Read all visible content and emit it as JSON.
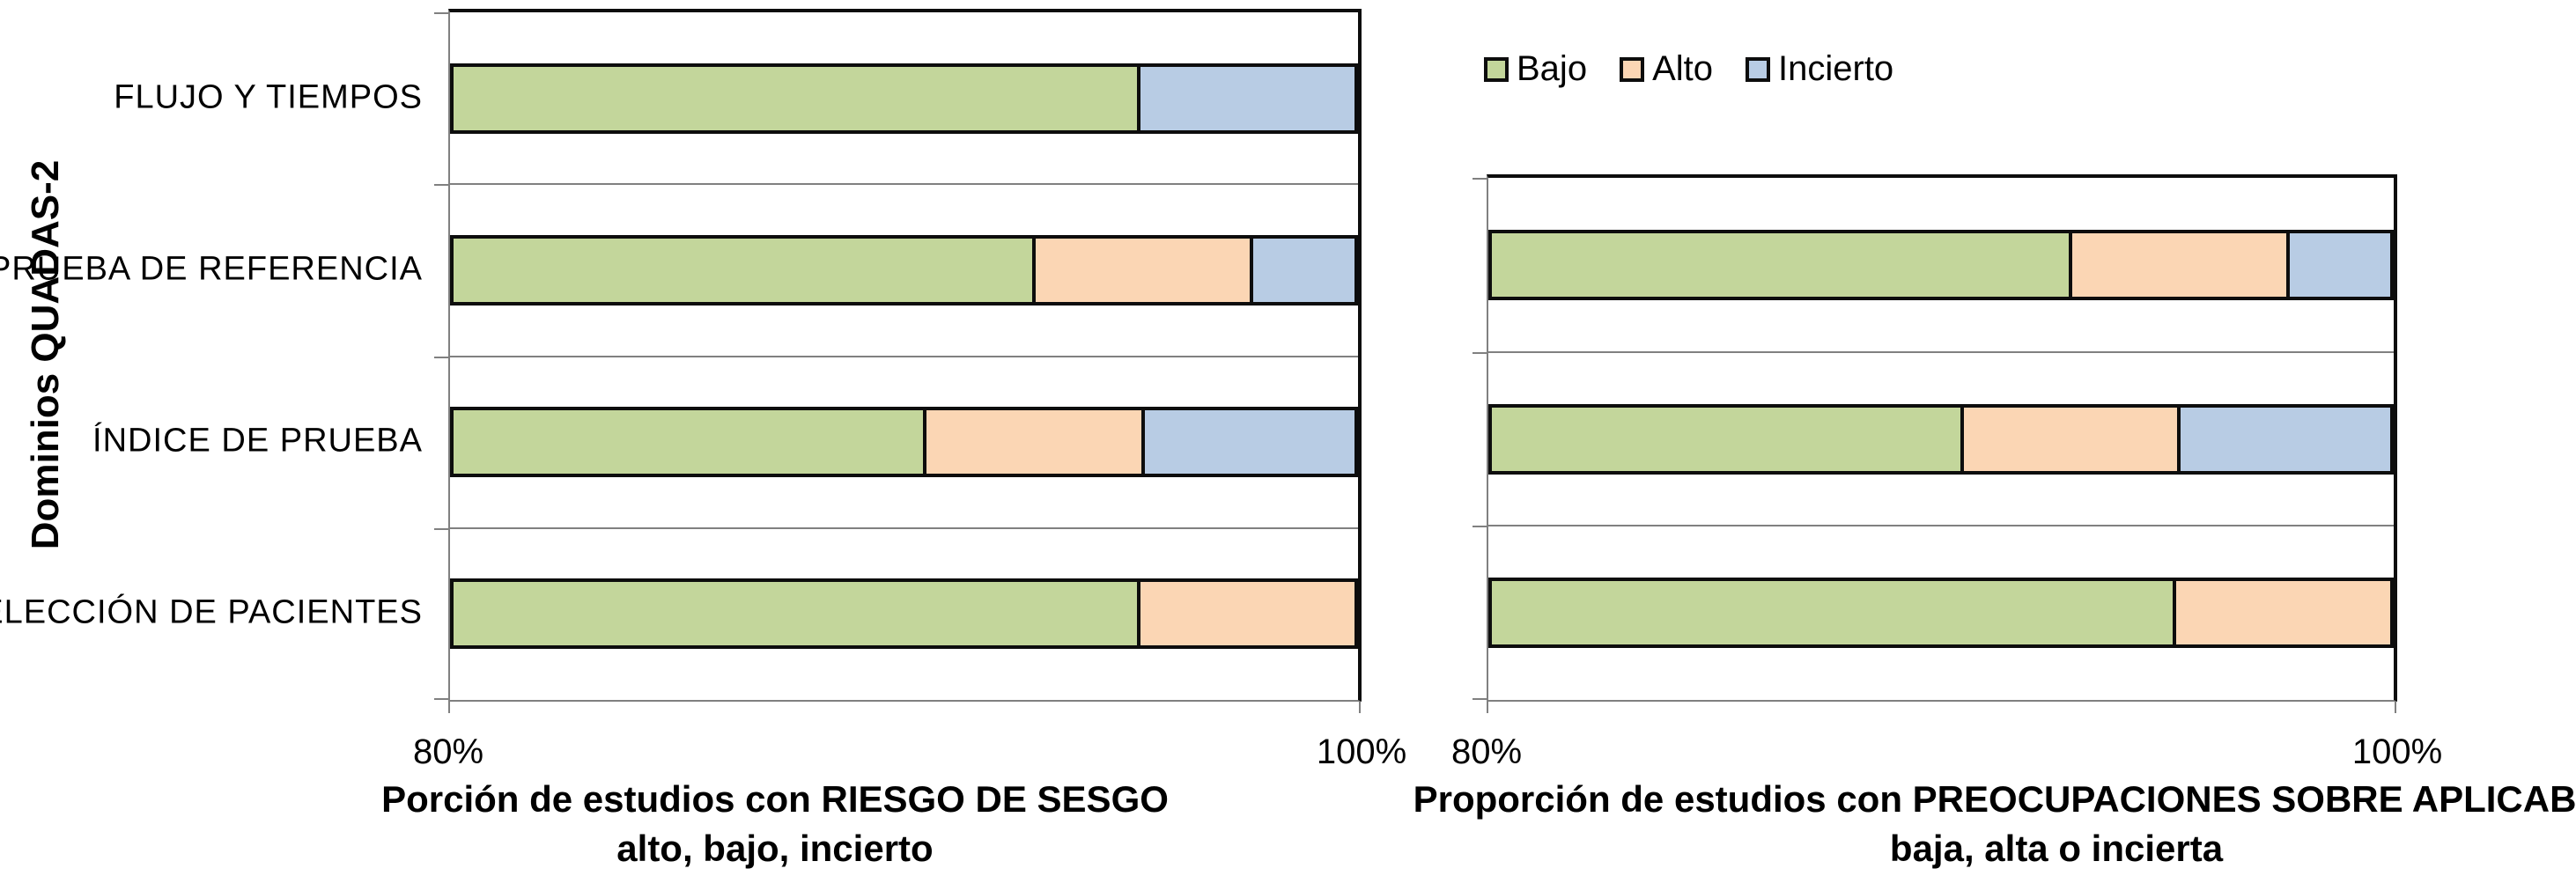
{
  "figure": {
    "background": "#ffffff",
    "y_axis_title": "Dominios QUADAS-2"
  },
  "legend": {
    "position": "top-right-chart",
    "items": [
      {
        "label": "Bajo",
        "color": "#c3d69b"
      },
      {
        "label": "Alto",
        "color": "#fbd6b4"
      },
      {
        "label": "Incierto",
        "color": "#b8cce4"
      }
    ]
  },
  "colors": {
    "low": "#c3d69b",
    "high": "#fbd6b4",
    "unclear": "#b8cce4",
    "segment_border": "#0d0d0d",
    "axis_gray": "#808080"
  },
  "chart_data": [
    {
      "id": "riesgo-de-sesgo",
      "type": "bar",
      "subtype": "horizontal-stacked",
      "title": "Porción de estudios con RIESGO DE SESGO",
      "subtitle": "alto, bajo, incierto",
      "categories": [
        "FLUJO Y TIEMPOS",
        "PRUEBA DE REFERENCIA",
        "ÍNDICE DE PRUEBA",
        "SELECCIÓN DE PACIENTES"
      ],
      "series": [
        {
          "name": "Bajo",
          "color": "#c3d69b",
          "values": [
            95.2,
            92.9,
            90.5,
            95.2
          ]
        },
        {
          "name": "Alto",
          "color": "#fbd6b4",
          "values": [
            0.0,
            4.8,
            4.8,
            4.8
          ]
        },
        {
          "name": "Incierto",
          "color": "#b8cce4",
          "values": [
            4.8,
            2.4,
            4.8,
            0.0
          ]
        }
      ],
      "x_axis": {
        "min": 80,
        "max": 100,
        "unit": "%",
        "tick_labels": [
          "80%",
          "100%"
        ]
      },
      "grid": true,
      "show_category_labels": true,
      "legend_position": "none"
    },
    {
      "id": "aplicabilidad",
      "type": "bar",
      "subtype": "horizontal-stacked",
      "title": "Proporción de estudios con PREOCUPACIONES SOBRE APLICABILIDAD",
      "subtitle": "baja, alta o incierta",
      "categories": [
        "PRUEBA DE REFERENCIA",
        "ÍNDICE DE PRUEBA",
        "SELECCIÓN DE PACIENTES"
      ],
      "series": [
        {
          "name": "Bajo",
          "color": "#c3d69b",
          "values": [
            92.9,
            90.5,
            95.2
          ]
        },
        {
          "name": "Alto",
          "color": "#fbd6b4",
          "values": [
            4.8,
            4.8,
            4.8
          ]
        },
        {
          "name": "Incierto",
          "color": "#b8cce4",
          "values": [
            2.4,
            4.8,
            0.0
          ]
        }
      ],
      "x_axis": {
        "min": 80,
        "max": 100,
        "unit": "%",
        "tick_labels": [
          "80%",
          "100%"
        ]
      },
      "grid": true,
      "show_category_labels": false,
      "legend_position": "top-left"
    }
  ]
}
